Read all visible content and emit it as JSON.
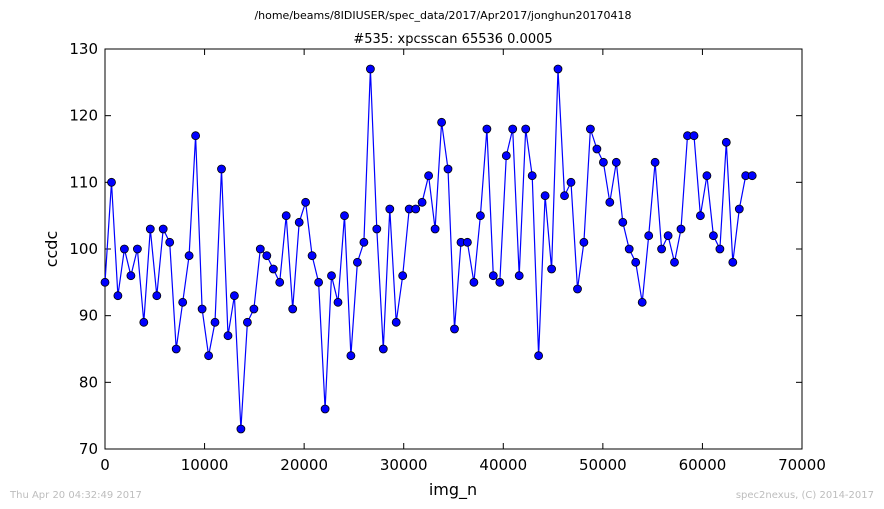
{
  "figure": {
    "path_title": "/home/beams/8IDIUSER/spec_data/2017/Apr2017/jonghun20170418",
    "footer_left": "Thu Apr 20 04:32:49 2017",
    "footer_right": "spec2nexus, (C) 2014-2017"
  },
  "colors": {
    "line": "#0000ff",
    "marker_fill": "#0000ff",
    "marker_edge": "#000000",
    "axes": "#000000",
    "background": "#ffffff",
    "footer": "#bdbdbd"
  },
  "chart_data": {
    "type": "line",
    "title": "#535: xpcsscan 65536 0.0005",
    "xlabel": "img_n",
    "ylabel": "ccdc",
    "xlim": [
      0,
      70000
    ],
    "ylim": [
      70,
      130
    ],
    "xticks": [
      0,
      10000,
      20000,
      30000,
      40000,
      50000,
      60000,
      70000
    ],
    "xtick_labels": [
      "0",
      "10000",
      "20000",
      "30000",
      "40000",
      "50000",
      "60000",
      "70000"
    ],
    "yticks": [
      70,
      80,
      90,
      100,
      110,
      120,
      130
    ],
    "ytick_labels": [
      "70",
      "80",
      "90",
      "100",
      "110",
      "120",
      "130"
    ],
    "grid": false,
    "legend": "none",
    "markers": "circle",
    "series": [
      {
        "x": [
          0,
          650,
          1300,
          1950,
          2600,
          3250,
          3900,
          4550,
          5200,
          5850,
          6500,
          7150,
          7800,
          8450,
          9100,
          9750,
          10400,
          11050,
          11700,
          12350,
          13000,
          13650,
          14300,
          14950,
          15600,
          16250,
          16900,
          17550,
          18200,
          18850,
          19500,
          20150,
          20800,
          21450,
          22100,
          22750,
          23400,
          24050,
          24700,
          25350,
          26000,
          26650,
          27300,
          27950,
          28600,
          29250,
          29900,
          30550,
          31200,
          31850,
          32500,
          33150,
          33800,
          34450,
          35100,
          35750,
          36400,
          37050,
          37700,
          38350,
          39000,
          39650,
          40300,
          40950,
          41600,
          42250,
          42900,
          43550,
          44200,
          44850,
          45500,
          46150,
          46800,
          47450,
          48100,
          48750,
          49400,
          50050,
          50700,
          51350,
          52000,
          52650,
          53300,
          53950,
          54600,
          55250,
          55900,
          56550,
          57200,
          57850,
          58500,
          59150,
          59800,
          60450,
          61100,
          61750,
          62400,
          63050,
          63700,
          64350,
          65000
        ],
        "y": [
          95,
          110,
          93,
          100,
          96,
          100,
          89,
          103,
          93,
          103,
          101,
          85,
          92,
          99,
          117,
          91,
          84,
          89,
          112,
          87,
          93,
          73,
          89,
          91,
          100,
          99,
          97,
          95,
          105,
          91,
          104,
          107,
          99,
          95,
          76,
          96,
          92,
          105,
          84,
          98,
          101,
          127,
          103,
          85,
          106,
          89,
          96,
          106,
          106,
          107,
          111,
          103,
          119,
          112,
          88,
          101,
          101,
          95,
          105,
          118,
          96,
          95,
          114,
          118,
          96,
          118,
          111,
          84,
          108,
          97,
          127,
          108,
          110,
          94,
          101,
          118,
          115,
          113,
          107,
          113,
          104,
          100,
          98,
          92,
          102,
          113,
          100,
          102,
          98,
          103,
          117,
          117,
          105,
          111,
          102,
          100,
          116,
          98,
          106,
          111,
          111
        ]
      }
    ]
  }
}
